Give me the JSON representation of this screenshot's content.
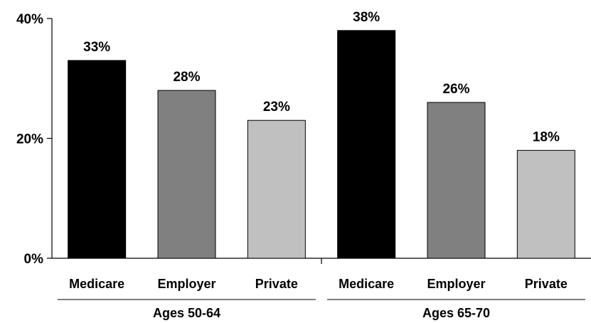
{
  "chart_data": {
    "type": "bar",
    "y_ticks": [
      "0%",
      "20%",
      "40%"
    ],
    "ylim": [
      0,
      40
    ],
    "groups": [
      {
        "label": "Ages 50-64",
        "categories": [
          "Medicare",
          "Employer",
          "Private"
        ],
        "values": [
          33,
          28,
          23
        ],
        "labels": [
          "33%",
          "28%",
          "23%"
        ]
      },
      {
        "label": "Ages 65-70",
        "categories": [
          "Medicare",
          "Employer",
          "Private"
        ],
        "values": [
          38,
          26,
          18
        ],
        "labels": [
          "38%",
          "26%",
          "18%"
        ]
      }
    ],
    "colors": [
      "#000000",
      "#808080",
      "#c0c0c0"
    ],
    "grid": false,
    "legend": "none"
  }
}
